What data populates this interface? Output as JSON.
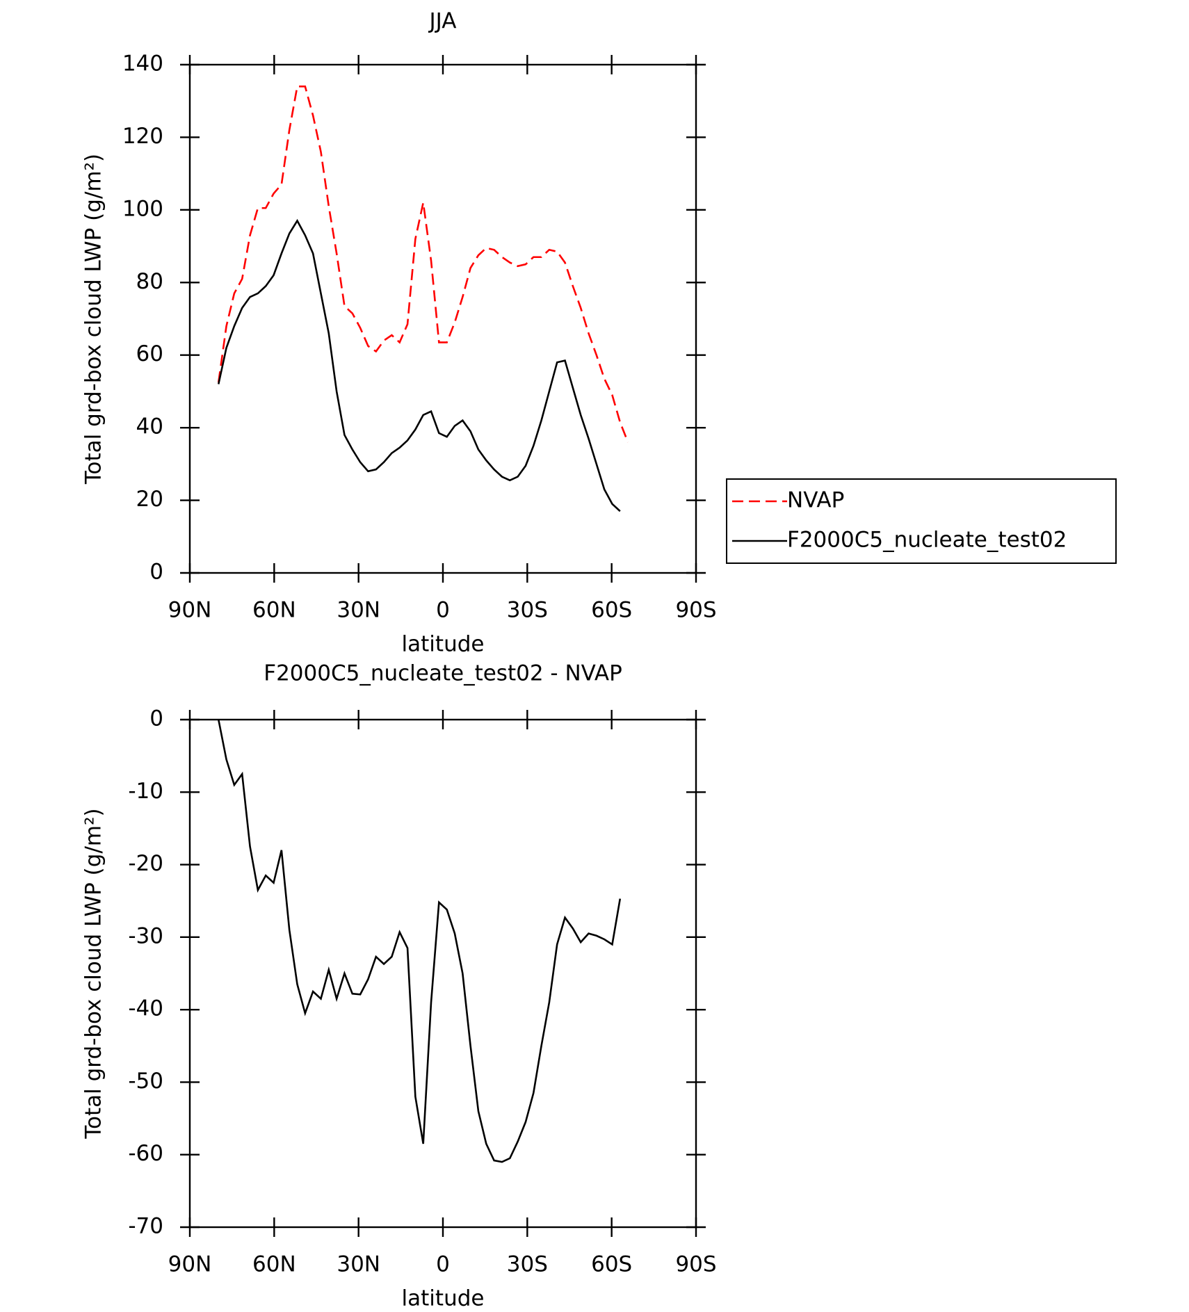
{
  "chart_data": [
    {
      "type": "line",
      "title": "JJA",
      "xlabel": "latitude",
      "ylabel": "Total grd-box cloud LWP (g/m²)",
      "x": [
        79.8,
        77,
        74.2,
        71.4,
        68.6,
        65.8,
        63,
        60.2,
        57.4,
        54.6,
        51.8,
        49,
        46.2,
        43.4,
        40.6,
        37.8,
        35,
        32.2,
        29.4,
        26.6,
        23.8,
        21,
        18.2,
        15.4,
        12.6,
        9.8,
        7,
        4.2,
        1.4,
        -1.4,
        -4.2,
        -7,
        -9.8,
        -12.6,
        -15.4,
        -18.2,
        -21,
        -23.8,
        -26.6,
        -29.4,
        -32.2,
        -35,
        -37.8,
        -40.6,
        -43.4,
        -46.2,
        -49,
        -51.8,
        -54.6,
        -57.4,
        -60.2,
        -63,
        -65.8
      ],
      "xlim": [
        90,
        -90
      ],
      "xticks": [
        {
          "value": 90,
          "label": "90N"
        },
        {
          "value": 60,
          "label": "60N"
        },
        {
          "value": 30,
          "label": "30N"
        },
        0,
        {
          "value": -30,
          "label": "30S"
        },
        {
          "value": -60,
          "label": "60S"
        },
        {
          "value": -90,
          "label": "90S"
        }
      ],
      "ylim": [
        0,
        140
      ],
      "yticks": [
        0,
        20,
        40,
        60,
        80,
        100,
        120,
        140
      ],
      "legend": "right",
      "series": [
        {
          "name": "NVAP",
          "color": "#ff0000",
          "line_style": "dashed",
          "values": [
            52.5,
            68,
            77,
            81,
            93,
            100.5,
            100.5,
            104.5,
            107,
            122,
            134,
            134,
            126,
            116,
            101,
            88,
            73.5,
            71.5,
            67.5,
            62.5,
            61,
            64,
            65.5,
            63.5,
            68.5,
            92,
            102,
            86,
            63.5,
            63.5,
            69,
            76,
            84,
            87.5,
            89.5,
            89,
            87,
            85.5,
            84.5,
            85,
            87,
            87,
            89,
            88.5,
            85.5,
            79,
            73,
            66,
            60,
            53.5,
            49,
            41.5,
            36
          ]
        },
        {
          "name": "F2000C5_nucleate_test02",
          "color": "#000000",
          "line_style": "solid",
          "values": [
            52,
            62,
            68,
            73,
            76,
            77,
            79,
            82,
            88,
            93.5,
            97,
            93,
            88,
            77,
            66,
            50,
            38,
            34,
            30.5,
            28,
            28.5,
            30.5,
            33,
            34.5,
            36.5,
            39.5,
            43.5,
            44.5,
            38.5,
            37.5,
            40.5,
            42,
            39,
            34,
            31,
            28.5,
            26.5,
            25.5,
            26.5,
            29.5,
            35,
            42,
            50,
            58,
            58.5,
            51,
            43.5,
            37,
            30,
            23,
            19,
            17,
            null
          ]
        }
      ]
    },
    {
      "type": "line",
      "title": "F2000C5_nucleate_test02 - NVAP",
      "xlabel": "latitude",
      "ylabel": "Total grd-box cloud LWP (g/m²)",
      "x": [
        79.8,
        77,
        74.2,
        71.4,
        68.6,
        65.8,
        63,
        60.2,
        57.4,
        54.6,
        51.8,
        49,
        46.2,
        43.4,
        40.6,
        37.8,
        35,
        32.2,
        29.4,
        26.6,
        23.8,
        21,
        18.2,
        15.4,
        12.6,
        9.8,
        7,
        4.2,
        1.4,
        -1.4,
        -4.2,
        -7,
        -9.8,
        -12.6,
        -15.4,
        -18.2,
        -21,
        -23.8,
        -26.6,
        -29.4,
        -32.2,
        -35,
        -37.8,
        -40.6,
        -43.4,
        -46.2,
        -49,
        -51.8,
        -54.6,
        -57.4,
        -60.2,
        -63,
        -65.8
      ],
      "xlim": [
        90,
        -90
      ],
      "xticks": [
        {
          "value": 90,
          "label": "90N"
        },
        {
          "value": 60,
          "label": "60N"
        },
        {
          "value": 30,
          "label": "30N"
        },
        0,
        {
          "value": -30,
          "label": "30S"
        },
        {
          "value": -60,
          "label": "60S"
        },
        {
          "value": -90,
          "label": "90S"
        }
      ],
      "ylim": [
        -70,
        0
      ],
      "yticks": [
        -70,
        -60,
        -50,
        -40,
        -30,
        -20,
        -10,
        0
      ],
      "series": [
        {
          "color": "#000000",
          "line_style": "solid",
          "values": [
            0,
            -5.5,
            -9,
            -7.5,
            -17.5,
            -23.5,
            -21.5,
            -22.5,
            -18,
            -29,
            -36.5,
            -40.5,
            -37.5,
            -38.5,
            -34.5,
            -38.5,
            -35,
            -37.8,
            -37.9,
            -35.8,
            -32.7,
            -33.7,
            -32.7,
            -29.3,
            -31.5,
            -52,
            -58.5,
            -39,
            -25.2,
            -26.2,
            -29.5,
            -35,
            -45,
            -54,
            -58.5,
            -60.8,
            -61,
            -60.5,
            -58.2,
            -55.5,
            -51.5,
            -45,
            -39,
            -31,
            -27.3,
            -28.8,
            -30.7,
            -29.5,
            -29.8,
            -30.3,
            -31,
            -24.7,
            null
          ]
        }
      ]
    }
  ]
}
